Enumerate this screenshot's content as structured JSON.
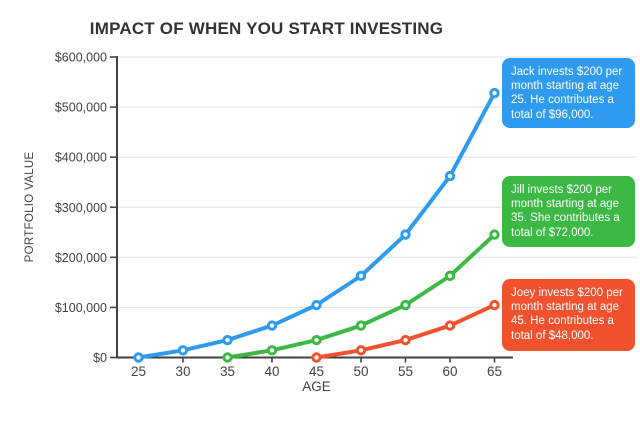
{
  "title": "IMPACT OF WHEN YOU START INVESTING",
  "chart_data": {
    "type": "line",
    "title": "IMPACT OF WHEN YOU START INVESTING",
    "xlabel": "AGE",
    "ylabel": "PORTFOLIO VALUE",
    "x_ticks": [
      25,
      30,
      35,
      40,
      45,
      50,
      55,
      60,
      65
    ],
    "y_tick_values": [
      0,
      100000,
      200000,
      300000,
      400000,
      500000,
      600000
    ],
    "y_tick_labels": [
      "$0",
      "$100,000",
      "$200,000",
      "$300,000",
      "$400,000",
      "$500,000",
      "$600,000"
    ],
    "xlim": [
      22.6,
      67.1
    ],
    "ylim": [
      0,
      600000
    ],
    "grid": "horizontal-light",
    "legend": "callout-boxes-right",
    "series": [
      {
        "name": "Jack",
        "color": "#2E9BF0",
        "ages": [
          25,
          30,
          35,
          40,
          45,
          50,
          55,
          60,
          65
        ],
        "values": [
          0,
          14400,
          34800,
          63800,
          104800,
          163000,
          245400,
          362300,
          528000
        ]
      },
      {
        "name": "Jill",
        "color": "#3BB944",
        "ages": [
          35,
          40,
          45,
          50,
          55,
          60,
          65
        ],
        "values": [
          0,
          14400,
          34800,
          63800,
          104800,
          163000,
          245400
        ]
      },
      {
        "name": "Joey",
        "color": "#F1512D",
        "ages": [
          45,
          50,
          55,
          60,
          65
        ],
        "values": [
          0,
          14400,
          34800,
          63800,
          104800
        ]
      }
    ]
  },
  "callouts": [
    {
      "series": "Jack",
      "color": "#2E9BF0",
      "text": "Jack invests $200 per month starting at age 25. He contributes a total of $96,000."
    },
    {
      "series": "Jill",
      "color": "#3BB944",
      "text": "Jill invests $200 per month starting at age 35. She contributes a total of $72,000."
    },
    {
      "series": "Joey",
      "color": "#F1512D",
      "text": "Joey invests $200 per month starting at age 45. He contributes a total of $48,000."
    }
  ],
  "colors": {
    "background": "#FFFFFF",
    "axis": "#424242",
    "grid": "#E5E5E5",
    "title_text": "#333333",
    "tick_text": "#424242",
    "point_fill": "#FFFFFF",
    "callout_text": "#FFFFFF"
  }
}
